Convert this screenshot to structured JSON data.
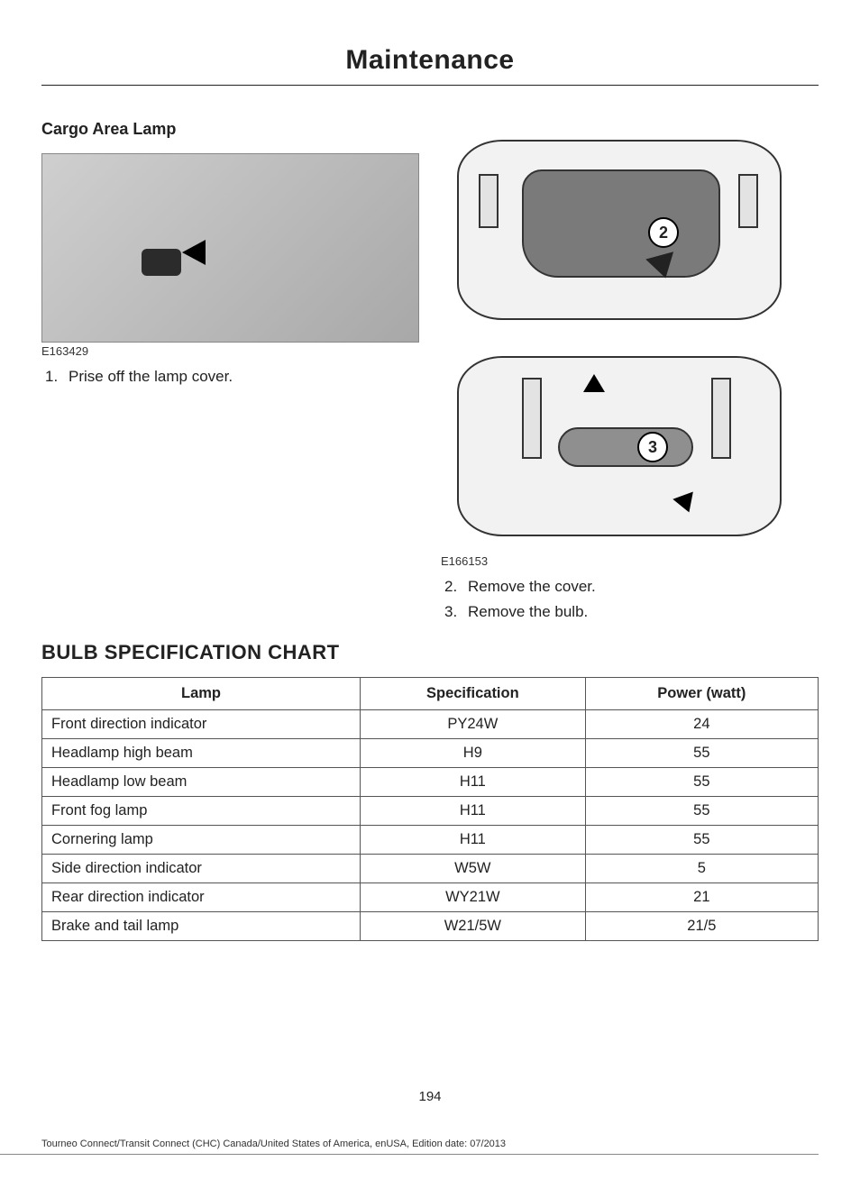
{
  "chapter_title": "Maintenance",
  "subsection_title": "Cargo Area Lamp",
  "figure1": {
    "caption": "E163429",
    "callout": null,
    "colors": {
      "bg_start": "#cfcfcf",
      "bg_end": "#a8a8a8",
      "slot": "#2b2b2b"
    }
  },
  "figure2": {
    "caption": "E166153",
    "callout_2": "2",
    "callout_3": "3",
    "colors": {
      "shell": "#f2f2f2",
      "inner": "#7a7a7a",
      "stroke": "#333333",
      "bulb": "#8f8f8f"
    }
  },
  "steps_left": [
    {
      "n": "1.",
      "text": "Prise off the lamp cover."
    }
  ],
  "steps_right": [
    {
      "n": "2.",
      "text": "Remove the cover."
    },
    {
      "n": "3.",
      "text": "Remove the bulb."
    }
  ],
  "section_title": "BULB SPECIFICATION CHART",
  "table": {
    "columns": [
      "Lamp",
      "Specification",
      "Power (watt)"
    ],
    "column_widths_pct": [
      41,
      29,
      30
    ],
    "border_color": "#555555",
    "header_fontweight": 800,
    "cell_fontsize": 16.5,
    "rows": [
      [
        "Front direction indicator",
        "PY24W",
        "24"
      ],
      [
        "Headlamp high beam",
        "H9",
        "55"
      ],
      [
        "Headlamp low beam",
        "H11",
        "55"
      ],
      [
        "Front fog lamp",
        "H11",
        "55"
      ],
      [
        "Cornering lamp",
        "H11",
        "55"
      ],
      [
        "Side direction indicator",
        "W5W",
        "5"
      ],
      [
        "Rear direction indicator",
        "WY21W",
        "21"
      ],
      [
        "Brake and tail lamp",
        "W21/5W",
        "21/5"
      ]
    ]
  },
  "page_number": "194",
  "footer_note": "Tourneo Connect/Transit Connect (CHC) Canada/United States of America, enUSA, Edition date: 07/2013",
  "typography": {
    "chapter_fontsize": 30,
    "chapter_fontweight": 800,
    "subheading_fontsize": 18,
    "subheading_fontweight": 800,
    "body_fontsize": 17,
    "section_fontsize": 22,
    "section_fontweight": 800,
    "caption_fontsize": 13,
    "footer_fontsize": 11
  },
  "colors": {
    "text": "#222222",
    "rule": "#222222",
    "background": "#ffffff"
  }
}
